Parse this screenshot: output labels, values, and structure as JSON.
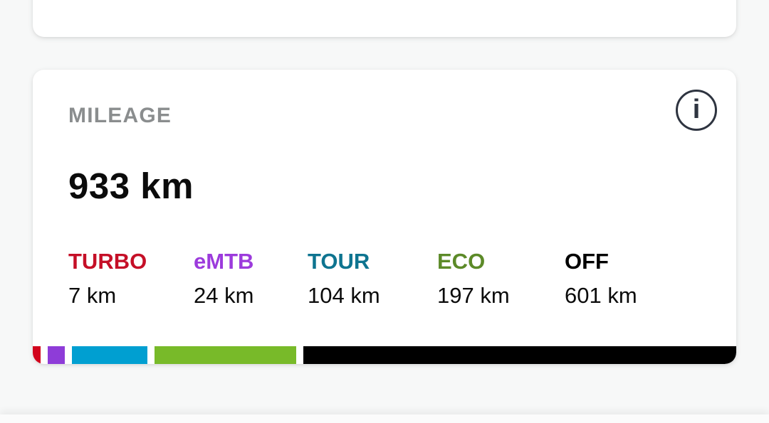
{
  "mileage_card": {
    "title": "MILEAGE",
    "total": "933 km",
    "info_glyph": "i",
    "modes": [
      {
        "name": "TURBO",
        "value": "7 km",
        "km": 7,
        "label_color": "#c50f27",
        "bar_color": "#d2041d"
      },
      {
        "name": "eMTB",
        "value": "24 km",
        "km": 24,
        "label_color": "#9c3bdc",
        "bar_color": "#8e3cd8"
      },
      {
        "name": "TOUR",
        "value": "104 km",
        "km": 104,
        "label_color": "#0e7490",
        "bar_color": "#009fd1"
      },
      {
        "name": "ECO",
        "value": "197 km",
        "km": 197,
        "label_color": "#5c8a28",
        "bar_color": "#78ba29"
      },
      {
        "name": "OFF",
        "value": "601 km",
        "km": 601,
        "label_color": "#000000",
        "bar_color": "#000000"
      }
    ],
    "colors": {
      "title_gray": "#8a8d8e",
      "text_black": "#0b0b0b",
      "icon_dark": "#2e3440",
      "card_bg": "#ffffff",
      "page_bg": "#f7f8f8"
    }
  }
}
